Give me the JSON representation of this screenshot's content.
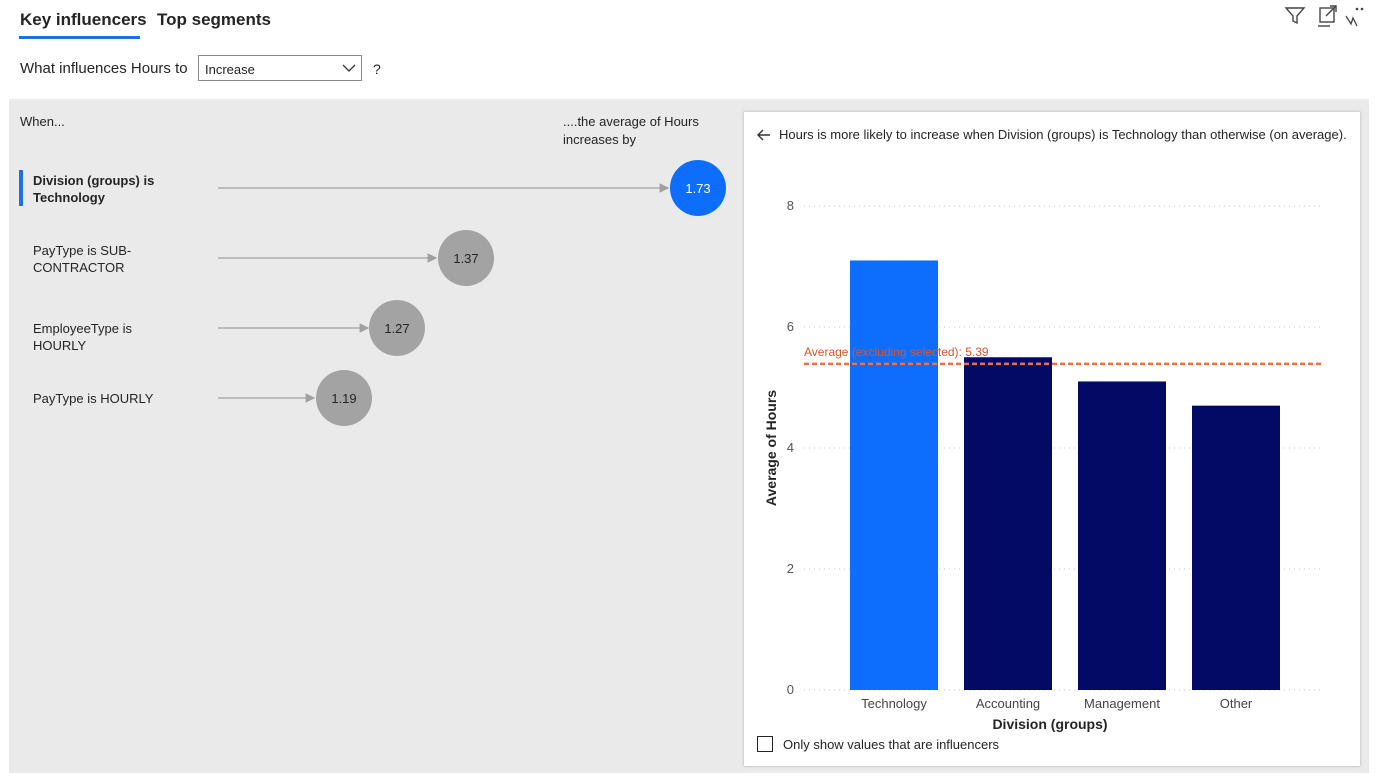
{
  "tabs": [
    {
      "label": "Key influencers",
      "active": true
    },
    {
      "label": "Top segments",
      "active": false
    }
  ],
  "toolbar_icons": [
    "filter-icon",
    "focus-mode-icon",
    "more-options-icon"
  ],
  "prompt": {
    "text": "What influences Hours to",
    "dropdown_value": "Increase",
    "help": "?"
  },
  "influencers": {
    "when_header": "When...",
    "value_header": "....the average of Hours increases by",
    "items": [
      {
        "label": "Division (groups) is Technology",
        "value": "1.73",
        "selected": true
      },
      {
        "label": "PayType is SUB-CONTRACTOR",
        "value": "1.37",
        "selected": false
      },
      {
        "label": "EmployeeType is HOURLY",
        "value": "1.27",
        "selected": false
      },
      {
        "label": "PayType is HOURLY",
        "value": "1.19",
        "selected": false
      }
    ]
  },
  "detail": {
    "title": "Hours is more likely to increase when Division (groups) is Technology than otherwise (on average).",
    "checkbox_label": "Only show values that are influencers"
  },
  "colors": {
    "accent": "#1f6fe5",
    "selected_bar": "#0d6efd",
    "other_bar": "#020a66",
    "bubble_gray": "#a3a3a3",
    "average_line": "#e8724a"
  },
  "chart_data": {
    "type": "bar",
    "categories": [
      "Technology",
      "Accounting",
      "Management",
      "Other"
    ],
    "values": [
      7.1,
      5.5,
      5.1,
      4.7
    ],
    "highlight_index": 0,
    "xlabel": "Division (groups)",
    "ylabel": "Average of Hours",
    "ylim": [
      0,
      8
    ],
    "yticks": [
      0,
      2,
      4,
      6,
      8
    ],
    "grid": true,
    "reference_line": {
      "label": "Average (excluding selected): 5.39",
      "value": 5.39
    }
  }
}
